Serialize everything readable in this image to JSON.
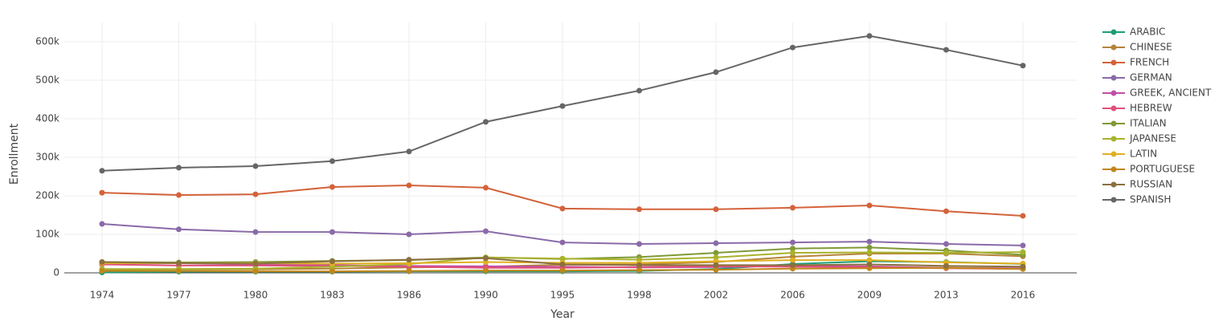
{
  "chart_data": {
    "type": "line",
    "x_label": "Year",
    "y_label": "Enrollment",
    "categories": [
      "1974",
      "1977",
      "1980",
      "1983",
      "1986",
      "1990",
      "1995",
      "1998",
      "2002",
      "2006",
      "2009",
      "2013",
      "2016"
    ],
    "ylim": [
      0,
      650000
    ],
    "yticks": [
      0,
      {
        "value": 100000,
        "label": "100k"
      },
      {
        "value": 200000,
        "label": "200k"
      },
      {
        "value": 300000,
        "label": "300k"
      },
      {
        "value": 400000,
        "label": "400k"
      },
      {
        "value": 500000,
        "label": "500k"
      },
      {
        "value": 600000,
        "label": "600k"
      }
    ],
    "grid": true,
    "legend": "right",
    "series": [
      {
        "name": "ARABIC",
        "color": "#1b9e77",
        "values": [
          1000,
          3000,
          3000,
          3000,
          4000,
          4000,
          4000,
          5000,
          10000,
          23000,
          30000,
          28000,
          23000
        ]
      },
      {
        "name": "CHINESE",
        "color": "#b5843a",
        "values": [
          8000,
          9000,
          9000,
          11000,
          14000,
          16000,
          21000,
          22000,
          28000,
          42000,
          50000,
          50000,
          43000
        ]
      },
      {
        "name": "FRENCH",
        "color": "#d4623a",
        "values": [
          208000,
          202000,
          204000,
          223000,
          227000,
          221000,
          167000,
          165000,
          165000,
          169000,
          175000,
          160000,
          148000
        ]
      },
      {
        "name": "GERMAN",
        "color": "#8a6aa8",
        "values": [
          127000,
          113000,
          106000,
          106000,
          100000,
          108000,
          79000,
          75000,
          77000,
          79000,
          81000,
          75000,
          71000
        ]
      },
      {
        "name": "GREEK, ANCIENT",
        "color": "#c04fa8",
        "values": [
          24000,
          25000,
          22000,
          20000,
          18000,
          17000,
          16000,
          14000,
          15000,
          18000,
          17000,
          13000,
          12000
        ]
      },
      {
        "name": "HEBREW",
        "color": "#e0507a",
        "values": [
          22000,
          19000,
          19000,
          18000,
          16000,
          13000,
          13000,
          15000,
          17000,
          16000,
          15000,
          12000,
          10000
        ]
      },
      {
        "name": "ITALIAN",
        "color": "#7f9a36",
        "values": [
          28000,
          27000,
          28000,
          31000,
          33000,
          40000,
          36000,
          41000,
          52000,
          63000,
          66000,
          58000,
          47000
        ]
      },
      {
        "name": "JAPANESE",
        "color": "#a9b22c",
        "values": [
          10000,
          10000,
          11000,
          16000,
          23000,
          40000,
          37000,
          34000,
          40000,
          52000,
          53000,
          52000,
          54000
        ]
      },
      {
        "name": "LATIN",
        "color": "#e0b020",
        "values": [
          25000,
          25000,
          25000,
          24000,
          25000,
          28000,
          26000,
          26000,
          30000,
          33000,
          33000,
          27000,
          24000
        ]
      },
      {
        "name": "PORTUGUESE",
        "color": "#c0861a",
        "values": [
          5000,
          5000,
          4000,
          4000,
          5000,
          6000,
          6000,
          7000,
          8000,
          11000,
          12000,
          13000,
          10000
        ]
      },
      {
        "name": "RUSSIAN",
        "color": "#8b6f3f",
        "values": [
          28000,
          25000,
          24000,
          30000,
          34000,
          38000,
          22000,
          20000,
          20000,
          20000,
          22000,
          18000,
          16000
        ]
      },
      {
        "name": "SPANISH",
        "color": "#666666",
        "values": [
          265000,
          273000,
          277000,
          290000,
          315000,
          392000,
          433000,
          473000,
          521000,
          585000,
          615000,
          579000,
          538000
        ]
      }
    ]
  }
}
